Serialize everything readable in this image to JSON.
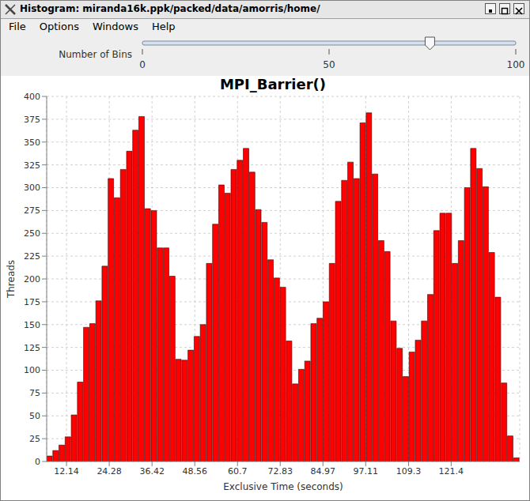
{
  "chart_data": {
    "type": "histogram",
    "title": "MPI_Barrier()",
    "x_label": "Exclusive Time (seconds)",
    "y_label": "Threads",
    "color": "#ff0000",
    "grid": true,
    "xlim": [
      6.5,
      140.865
    ],
    "ylim": [
      0,
      400
    ],
    "xticks": [
      12.14,
      24.28,
      36.42,
      48.56,
      60.7,
      72.83,
      84.97,
      97.11,
      109.3,
      121.4
    ],
    "yticks": [
      0,
      25,
      50,
      75,
      100,
      125,
      150,
      175,
      200,
      225,
      250,
      275,
      300,
      325,
      350,
      375,
      400
    ],
    "bins": [
      6.5,
      8.245,
      9.99,
      11.735,
      13.48,
      15.225,
      16.97,
      18.715,
      20.46,
      22.205,
      23.95,
      25.695,
      27.44,
      29.185,
      30.93,
      32.675,
      34.42,
      36.165,
      37.91,
      39.655,
      41.4,
      43.145,
      44.89,
      46.635,
      48.38,
      50.125,
      51.87,
      53.615,
      55.36,
      57.105,
      58.85,
      60.595,
      62.34,
      64.085,
      65.83,
      67.575,
      69.32,
      71.065,
      72.81,
      74.555,
      76.3,
      78.045,
      79.79,
      81.535,
      83.28,
      85.025,
      86.77,
      88.515,
      90.26,
      92.005,
      93.75,
      95.495,
      97.24,
      98.985,
      100.73,
      102.475,
      104.22,
      105.965,
      107.71,
      109.455,
      111.2,
      112.945,
      114.69,
      116.435,
      118.18,
      119.925,
      121.67,
      123.415,
      125.16,
      126.905,
      128.65,
      130.395,
      132.14,
      133.885,
      135.63,
      137.375,
      139.12,
      140.865
    ],
    "counts": [
      6,
      12,
      18,
      27,
      51,
      87,
      147,
      151,
      176,
      214,
      310,
      289,
      320,
      340,
      363,
      378,
      277,
      275,
      234,
      234,
      203,
      112,
      111,
      122,
      137,
      150,
      217,
      260,
      303,
      294,
      320,
      330,
      343,
      317,
      276,
      262,
      221,
      201,
      191,
      132,
      85,
      101,
      110,
      151,
      157,
      175,
      217,
      285,
      308,
      328,
      310,
      371,
      382,
      315,
      242,
      230,
      154,
      124,
      93,
      120,
      133,
      154,
      183,
      253,
      272,
      272,
      217,
      242,
      300,
      343,
      321,
      301,
      229,
      180,
      86,
      28,
      4
    ]
  },
  "window": {
    "title": "Histogram: miranda16k.ppk/packed/data/amorris/home/",
    "menu": [
      "File",
      "Options",
      "Windows",
      "Help"
    ],
    "slider": {
      "label": "Number of Bins",
      "range": [
        0,
        100
      ],
      "ticks": [
        0,
        50,
        100
      ],
      "value": 77
    }
  }
}
